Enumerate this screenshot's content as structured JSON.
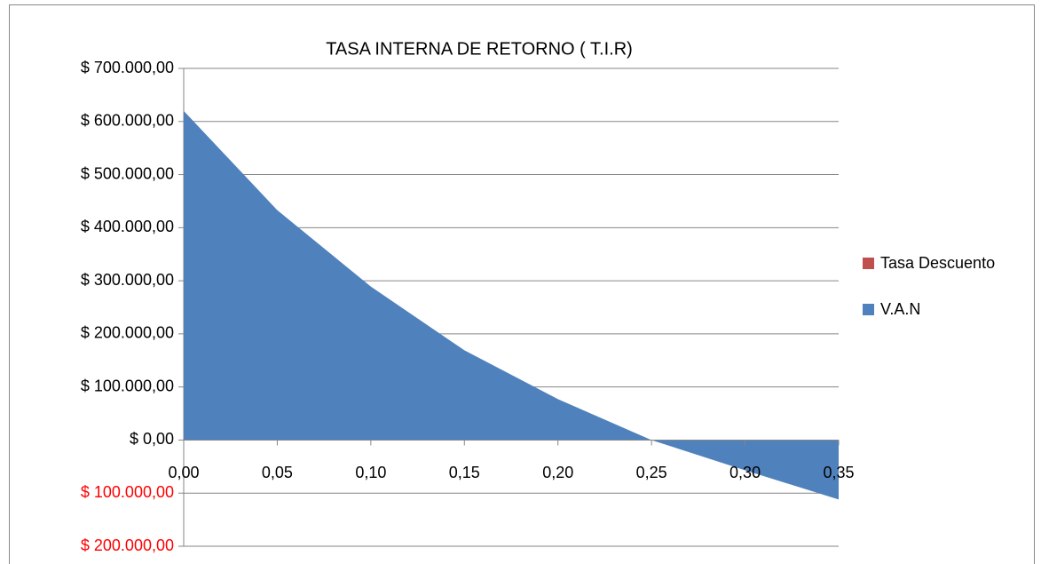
{
  "chart_data": {
    "type": "area",
    "title": "TASA INTERNA DE RETORNO ( T.I.R)",
    "x": [
      0,
      0.05,
      0.1,
      0.15,
      0.2,
      0.25,
      0.3,
      0.35
    ],
    "series": [
      {
        "name": "Tasa Descuento",
        "color": "#c0504d",
        "values": [
          0,
          0.05,
          0.1,
          0.15,
          0.2,
          0.25,
          0.3,
          0.35
        ]
      },
      {
        "name": "V.A.N",
        "color": "#4f81bd",
        "values": [
          620000,
          433000,
          289000,
          169000,
          77000,
          0,
          -57000,
          -112000
        ]
      }
    ],
    "xlim": [
      0,
      0.35
    ],
    "xticks": [
      {
        "value": 0,
        "label": "0,00"
      },
      {
        "value": 0.05,
        "label": "0,05"
      },
      {
        "value": 0.1,
        "label": "0,10"
      },
      {
        "value": 0.15,
        "label": "0,15"
      },
      {
        "value": 0.2,
        "label": "0,20"
      },
      {
        "value": 0.25,
        "label": "0,25"
      },
      {
        "value": 0.3,
        "label": "0,30"
      },
      {
        "value": 0.35,
        "label": "0,35"
      }
    ],
    "ylim": [
      -200000,
      700000
    ],
    "yticks": [
      {
        "value": 700000,
        "label": "$ 700.000,00"
      },
      {
        "value": 600000,
        "label": "$ 600.000,00"
      },
      {
        "value": 500000,
        "label": "$ 500.000,00"
      },
      {
        "value": 400000,
        "label": "$ 400.000,00"
      },
      {
        "value": 300000,
        "label": "$ 300.000,00"
      },
      {
        "value": 200000,
        "label": "$ 200.000,00"
      },
      {
        "value": 100000,
        "label": "$ 100.000,00"
      },
      {
        "value": 0,
        "label": "$ 0,00"
      },
      {
        "value": -100000,
        "label": "$ 100.000,00"
      },
      {
        "value": -200000,
        "label": "$ 200.000,00"
      }
    ],
    "negative_tick_color": "#ff0000",
    "grid": true,
    "legend": "right"
  }
}
